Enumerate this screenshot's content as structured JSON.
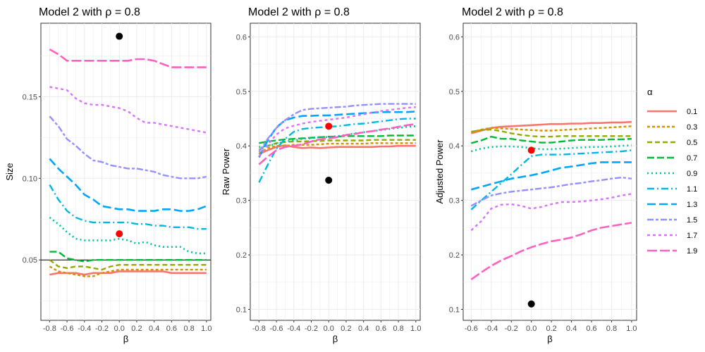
{
  "legend": {
    "title": "α",
    "placement": "right",
    "entries": [
      "0.1",
      "0.3",
      "0.5",
      "0.7",
      "0.9",
      "1.1",
      "1.3",
      "1.5",
      "1.7",
      "1.9"
    ]
  },
  "colors": {
    "0.1": "#F8766D",
    "0.3": "#D39200",
    "0.5": "#93AA00",
    "0.7": "#00BA38",
    "0.9": "#00C19F",
    "1.1": "#00B9E3",
    "1.3": "#00A5FF",
    "1.5": "#9590FF",
    "1.7": "#DB72FB",
    "1.9": "#FF61C3",
    "panel_bg": "#FFFFFF",
    "grid": "#EBEBEB",
    "red_point": "#FF0000",
    "black_point": "#000000"
  },
  "chart_data": [
    {
      "type": "line",
      "title": "Model 2 with ρ = 0.8",
      "xlabel": "β",
      "ylabel": "Size",
      "xlim": [
        -0.9,
        1.05
      ],
      "ylim": [
        0.013,
        0.195
      ],
      "grid": true,
      "xticks": [
        "-0.8",
        "-0.6",
        "-0.4",
        "-0.2",
        "0.0",
        "0.2",
        "0.4",
        "0.6",
        "0.8",
        "1.0"
      ],
      "yticks": [
        "0.05",
        "0.10",
        "0.15"
      ],
      "hline": 0.05,
      "x": [
        -0.8,
        -0.7,
        -0.6,
        -0.5,
        -0.4,
        -0.3,
        -0.2,
        -0.1,
        0.0,
        0.1,
        0.2,
        0.3,
        0.4,
        0.5,
        0.6,
        0.7,
        0.8,
        0.9,
        1.0
      ],
      "series": [
        {
          "name": "0.1",
          "values": [
            0.041,
            0.042,
            0.042,
            0.042,
            0.041,
            0.042,
            0.042,
            0.042,
            0.043,
            0.043,
            0.043,
            0.043,
            0.043,
            0.043,
            0.042,
            0.042,
            0.042,
            0.042,
            0.042
          ]
        },
        {
          "name": "0.3",
          "values": [
            0.046,
            0.043,
            0.042,
            0.041,
            0.04,
            0.04,
            0.042,
            0.043,
            0.044,
            0.044,
            0.044,
            0.044,
            0.044,
            0.044,
            0.044,
            0.044,
            0.044,
            0.044,
            0.044
          ]
        },
        {
          "name": "0.5",
          "values": [
            0.05,
            0.046,
            0.045,
            0.046,
            0.046,
            0.045,
            0.044,
            0.046,
            0.047,
            0.047,
            0.047,
            0.047,
            0.047,
            0.047,
            0.047,
            0.047,
            0.047,
            0.047,
            0.047
          ]
        },
        {
          "name": "0.7",
          "values": [
            0.055,
            0.055,
            0.051,
            0.05,
            0.049,
            0.05,
            0.05,
            0.05,
            0.05,
            0.05,
            0.05,
            0.05,
            0.05,
            0.05,
            0.05,
            0.05,
            0.05,
            0.05,
            0.05
          ]
        },
        {
          "name": "0.9",
          "values": [
            0.076,
            0.072,
            0.067,
            0.063,
            0.062,
            0.062,
            0.062,
            0.062,
            0.063,
            0.062,
            0.06,
            0.061,
            0.059,
            0.058,
            0.058,
            0.058,
            0.055,
            0.054,
            0.054
          ]
        },
        {
          "name": "1.1",
          "values": [
            0.096,
            0.087,
            0.08,
            0.076,
            0.074,
            0.073,
            0.073,
            0.073,
            0.073,
            0.073,
            0.072,
            0.072,
            0.071,
            0.071,
            0.07,
            0.07,
            0.07,
            0.069,
            0.069
          ]
        },
        {
          "name": "1.3",
          "values": [
            0.112,
            0.106,
            0.101,
            0.096,
            0.09,
            0.087,
            0.083,
            0.082,
            0.081,
            0.081,
            0.08,
            0.08,
            0.08,
            0.081,
            0.081,
            0.08,
            0.08,
            0.081,
            0.083
          ]
        },
        {
          "name": "1.5",
          "values": [
            0.138,
            0.132,
            0.124,
            0.12,
            0.115,
            0.111,
            0.11,
            0.108,
            0.107,
            0.106,
            0.106,
            0.105,
            0.104,
            0.102,
            0.101,
            0.1,
            0.1,
            0.1,
            0.101
          ]
        },
        {
          "name": "1.7",
          "values": [
            0.156,
            0.155,
            0.154,
            0.149,
            0.146,
            0.145,
            0.145,
            0.144,
            0.143,
            0.141,
            0.137,
            0.134,
            0.134,
            0.133,
            0.132,
            0.131,
            0.13,
            0.129,
            0.128
          ]
        },
        {
          "name": "1.9",
          "values": [
            0.179,
            0.176,
            0.172,
            0.172,
            0.172,
            0.172,
            0.172,
            0.172,
            0.172,
            0.172,
            0.173,
            0.173,
            0.172,
            0.17,
            0.168,
            0.168,
            0.168,
            0.168,
            0.168
          ]
        }
      ],
      "points": [
        {
          "x": 0.0,
          "y": 0.187,
          "color": "black"
        },
        {
          "x": 0.0,
          "y": 0.066,
          "color": "red"
        }
      ]
    },
    {
      "type": "line",
      "title": "Model 2 with ρ = 0.8",
      "xlabel": "β",
      "ylabel": "Raw Power",
      "xlim": [
        -0.9,
        1.05
      ],
      "ylim": [
        0.08,
        0.625
      ],
      "grid": true,
      "xticks": [
        "-0.8",
        "-0.6",
        "-0.4",
        "-0.2",
        "0.0",
        "0.2",
        "0.4",
        "0.6",
        "0.8",
        "1.0"
      ],
      "yticks": [
        "0.1",
        "0.2",
        "0.3",
        "0.4",
        "0.5",
        "0.6"
      ],
      "x": [
        -0.8,
        -0.7,
        -0.6,
        -0.5,
        -0.4,
        -0.3,
        -0.2,
        -0.1,
        0.0,
        0.1,
        0.2,
        0.3,
        0.4,
        0.5,
        0.6,
        0.7,
        0.8,
        0.9,
        1.0
      ],
      "series": [
        {
          "name": "0.1",
          "values": [
            0.385,
            0.392,
            0.398,
            0.401,
            0.398,
            0.396,
            0.397,
            0.396,
            0.397,
            0.398,
            0.398,
            0.398,
            0.398,
            0.398,
            0.399,
            0.399,
            0.4,
            0.4,
            0.4
          ]
        },
        {
          "name": "0.3",
          "values": [
            0.386,
            0.396,
            0.4,
            0.4,
            0.402,
            0.402,
            0.402,
            0.403,
            0.404,
            0.404,
            0.404,
            0.404,
            0.404,
            0.405,
            0.405,
            0.405,
            0.405,
            0.405,
            0.405
          ]
        },
        {
          "name": "0.5",
          "values": [
            0.393,
            0.4,
            0.405,
            0.407,
            0.408,
            0.408,
            0.409,
            0.409,
            0.41,
            0.41,
            0.41,
            0.41,
            0.41,
            0.411,
            0.411,
            0.411,
            0.411,
            0.411,
            0.411
          ]
        },
        {
          "name": "0.7",
          "values": [
            0.405,
            0.408,
            0.41,
            0.412,
            0.413,
            0.414,
            0.415,
            0.416,
            0.417,
            0.417,
            0.418,
            0.418,
            0.418,
            0.418,
            0.418,
            0.419,
            0.419,
            0.419,
            0.419
          ]
        },
        {
          "name": "0.9",
          "values": [
            0.398,
            0.4,
            0.404,
            0.408,
            0.41,
            0.413,
            0.414,
            0.416,
            0.416,
            0.418,
            0.42,
            0.423,
            0.425,
            0.427,
            0.429,
            0.431,
            0.433,
            0.435,
            0.436
          ]
        },
        {
          "name": "1.1",
          "values": [
            0.333,
            0.365,
            0.395,
            0.413,
            0.426,
            0.431,
            0.433,
            0.434,
            0.435,
            0.436,
            0.438,
            0.44,
            0.441,
            0.443,
            0.445,
            0.447,
            0.449,
            0.45,
            0.45
          ]
        },
        {
          "name": "1.3",
          "values": [
            0.379,
            0.41,
            0.434,
            0.447,
            0.452,
            0.455,
            0.455,
            0.456,
            0.456,
            0.457,
            0.458,
            0.459,
            0.46,
            0.461,
            0.462,
            0.462,
            0.462,
            0.462,
            0.463
          ]
        },
        {
          "name": "1.5",
          "values": [
            0.389,
            0.413,
            0.433,
            0.447,
            0.458,
            0.466,
            0.468,
            0.469,
            0.47,
            0.471,
            0.472,
            0.474,
            0.475,
            0.476,
            0.477,
            0.477,
            0.477,
            0.477,
            0.477
          ]
        },
        {
          "name": "1.7",
          "values": [
            0.381,
            0.402,
            0.421,
            0.432,
            0.437,
            0.441,
            0.444,
            0.446,
            0.448,
            0.45,
            0.452,
            0.455,
            0.458,
            0.461,
            0.464,
            0.466,
            0.468,
            0.47,
            0.471
          ]
        },
        {
          "name": "1.9",
          "values": [
            0.366,
            0.38,
            0.392,
            0.398,
            0.4,
            0.403,
            0.408,
            0.412,
            0.414,
            0.416,
            0.42,
            0.422,
            0.425,
            0.427,
            0.43,
            0.432,
            0.435,
            0.438,
            0.44
          ]
        }
      ],
      "points": [
        {
          "x": 0.0,
          "y": 0.337,
          "color": "black"
        },
        {
          "x": 0.0,
          "y": 0.436,
          "color": "red"
        }
      ]
    },
    {
      "type": "line",
      "title": "Model 2 with ρ = 0.8",
      "xlabel": "β",
      "ylabel": "Adjusted Power",
      "xlim": [
        -0.68,
        1.05
      ],
      "ylim": [
        0.08,
        0.625
      ],
      "grid": true,
      "xticks": [
        "-0.6",
        "-0.4",
        "-0.2",
        "0.0",
        "0.2",
        "0.4",
        "0.6",
        "0.8",
        "1.0"
      ],
      "yticks": [
        "0.1",
        "0.2",
        "0.3",
        "0.4",
        "0.5",
        "0.6"
      ],
      "x": [
        -0.6,
        -0.5,
        -0.4,
        -0.3,
        -0.2,
        -0.1,
        0.0,
        0.1,
        0.2,
        0.3,
        0.4,
        0.5,
        0.6,
        0.7,
        0.8,
        0.9,
        1.0
      ],
      "series": [
        {
          "name": "0.1",
          "values": [
            0.423,
            0.428,
            0.433,
            0.435,
            0.436,
            0.437,
            0.438,
            0.439,
            0.44,
            0.44,
            0.441,
            0.441,
            0.442,
            0.442,
            0.443,
            0.443,
            0.444
          ]
        },
        {
          "name": "0.3",
          "values": [
            0.425,
            0.43,
            0.433,
            0.432,
            0.431,
            0.43,
            0.429,
            0.428,
            0.428,
            0.429,
            0.43,
            0.431,
            0.432,
            0.433,
            0.434,
            0.435,
            0.436
          ]
        },
        {
          "name": "0.5",
          "values": [
            0.426,
            0.429,
            0.43,
            0.427,
            0.423,
            0.42,
            0.418,
            0.417,
            0.417,
            0.418,
            0.418,
            0.418,
            0.418,
            0.418,
            0.418,
            0.418,
            0.418
          ]
        },
        {
          "name": "0.7",
          "values": [
            0.405,
            0.41,
            0.417,
            0.413,
            0.413,
            0.41,
            0.408,
            0.406,
            0.406,
            0.408,
            0.41,
            0.411,
            0.411,
            0.411,
            0.412,
            0.412,
            0.413
          ]
        },
        {
          "name": "0.9",
          "values": [
            0.39,
            0.395,
            0.398,
            0.399,
            0.399,
            0.398,
            0.396,
            0.394,
            0.394,
            0.395,
            0.396,
            0.397,
            0.398,
            0.398,
            0.399,
            0.4,
            0.401
          ]
        },
        {
          "name": "1.1",
          "values": [
            0.283,
            0.3,
            0.316,
            0.332,
            0.348,
            0.365,
            0.381,
            0.384,
            0.384,
            0.384,
            0.385,
            0.386,
            0.387,
            0.388,
            0.389,
            0.39,
            0.392
          ]
        },
        {
          "name": "1.3",
          "values": [
            0.32,
            0.325,
            0.33,
            0.335,
            0.34,
            0.343,
            0.346,
            0.35,
            0.355,
            0.36,
            0.362,
            0.365,
            0.368,
            0.37,
            0.37,
            0.37,
            0.37
          ]
        },
        {
          "name": "1.5",
          "values": [
            0.29,
            0.3,
            0.309,
            0.313,
            0.316,
            0.318,
            0.32,
            0.322,
            0.324,
            0.327,
            0.33,
            0.332,
            0.335,
            0.337,
            0.34,
            0.342,
            0.34
          ]
        },
        {
          "name": "1.7",
          "values": [
            0.245,
            0.262,
            0.285,
            0.292,
            0.293,
            0.29,
            0.285,
            0.288,
            0.293,
            0.297,
            0.297,
            0.298,
            0.3,
            0.302,
            0.305,
            0.309,
            0.312
          ]
        },
        {
          "name": "1.9",
          "values": [
            0.155,
            0.168,
            0.18,
            0.19,
            0.198,
            0.207,
            0.214,
            0.22,
            0.225,
            0.228,
            0.232,
            0.238,
            0.245,
            0.25,
            0.253,
            0.256,
            0.259
          ]
        }
      ],
      "points": [
        {
          "x": 0.0,
          "y": 0.11,
          "color": "black"
        },
        {
          "x": 0.0,
          "y": 0.392,
          "color": "red"
        }
      ]
    }
  ]
}
